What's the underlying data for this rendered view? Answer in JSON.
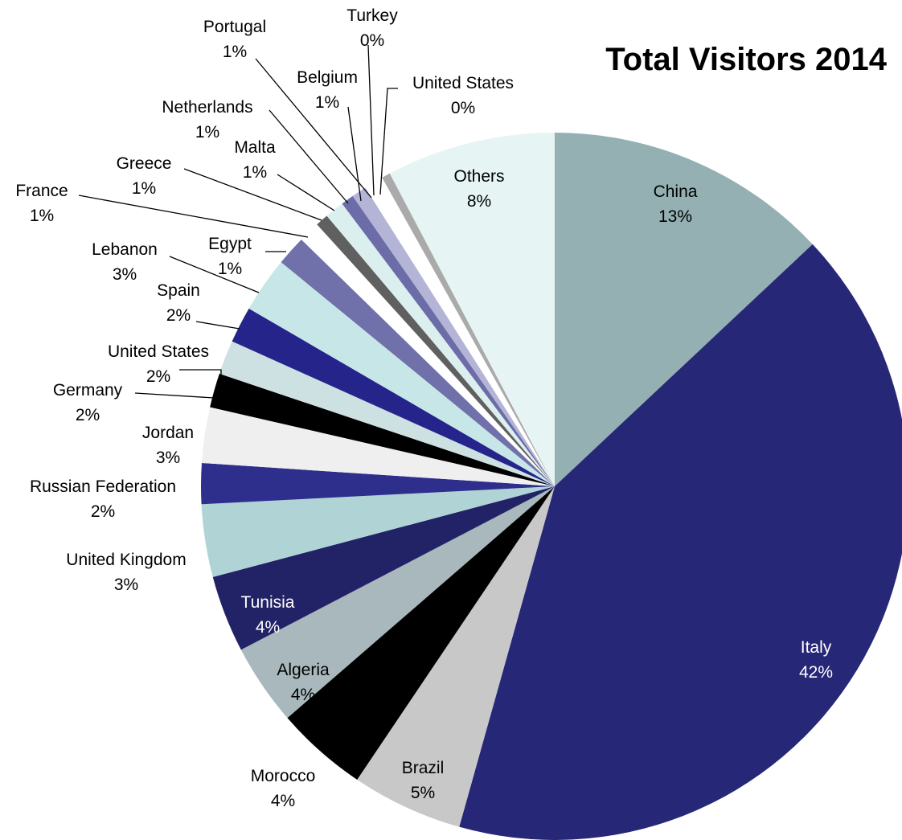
{
  "chart_data": {
    "type": "pie",
    "title": "Total Visitors 2014",
    "start_angle_deg": 0,
    "direction": "clockwise",
    "slices": [
      {
        "label": "China",
        "pct_label": "13%",
        "value": 13.3,
        "color": "#94b0b2"
      },
      {
        "label": "Italy",
        "pct_label": "42%",
        "value": 42.3,
        "color": "#272777"
      },
      {
        "label": "Brazil",
        "pct_label": "5%",
        "value": 5.2,
        "color": "#c8c8c8"
      },
      {
        "label": "Morocco",
        "pct_label": "4%",
        "value": 4.3,
        "color": "#000000"
      },
      {
        "label": "Algeria",
        "pct_label": "4%",
        "value": 3.8,
        "color": "#a8b8bc"
      },
      {
        "label": "Tunisia",
        "pct_label": "4%",
        "value": 3.6,
        "color": "#222266"
      },
      {
        "label": "United Kingdom",
        "pct_label": "3%",
        "value": 3.4,
        "color": "#b0d4d6"
      },
      {
        "label": "Russian Federation",
        "pct_label": "2%",
        "value": 1.9,
        "color": "#2e2e8c"
      },
      {
        "label": "Jordan",
        "pct_label": "3%",
        "value": 2.6,
        "color": "#efefef"
      },
      {
        "label": "Germany",
        "pct_label": "2%",
        "value": 1.6,
        "color": "#000000"
      },
      {
        "label": "United States",
        "pct_label": "2%",
        "value": 1.6,
        "color": "#cde0e2"
      },
      {
        "label": "Spain",
        "pct_label": "2%",
        "value": 1.7,
        "color": "#24248a"
      },
      {
        "label": "Lebanon",
        "pct_label": "3%",
        "value": 2.6,
        "color": "#c6e6e8"
      },
      {
        "label": "Egypt",
        "pct_label": "1%",
        "value": 1.4,
        "color": "#7070aa"
      },
      {
        "label": "France",
        "pct_label": "1%",
        "value": 1.0,
        "color": "#ffffff"
      },
      {
        "label": "Greece",
        "pct_label": "1%",
        "value": 0.6,
        "color": "#606060"
      },
      {
        "label": "Malta",
        "pct_label": "1%",
        "value": 0.9,
        "color": "#dcefef"
      },
      {
        "label": "Netherlands",
        "pct_label": "1%",
        "value": 0.6,
        "color": "#6c6ca8"
      },
      {
        "label": "Belgium",
        "pct_label": "1%",
        "value": 0.7,
        "color": "#b4b4d6"
      },
      {
        "label": "Portugal",
        "pct_label": "1%",
        "value": 0.6,
        "color": "#ffffff"
      },
      {
        "label": "Turkey",
        "pct_label": "0%",
        "value": 0.3,
        "color": "#ffffff"
      },
      {
        "label": "United States",
        "pct_label": "0%",
        "value": 0.4,
        "color": "#aaaaaa"
      },
      {
        "label": "Others",
        "pct_label": "8%",
        "value": 7.9,
        "color": "#e6f4f4"
      }
    ]
  }
}
